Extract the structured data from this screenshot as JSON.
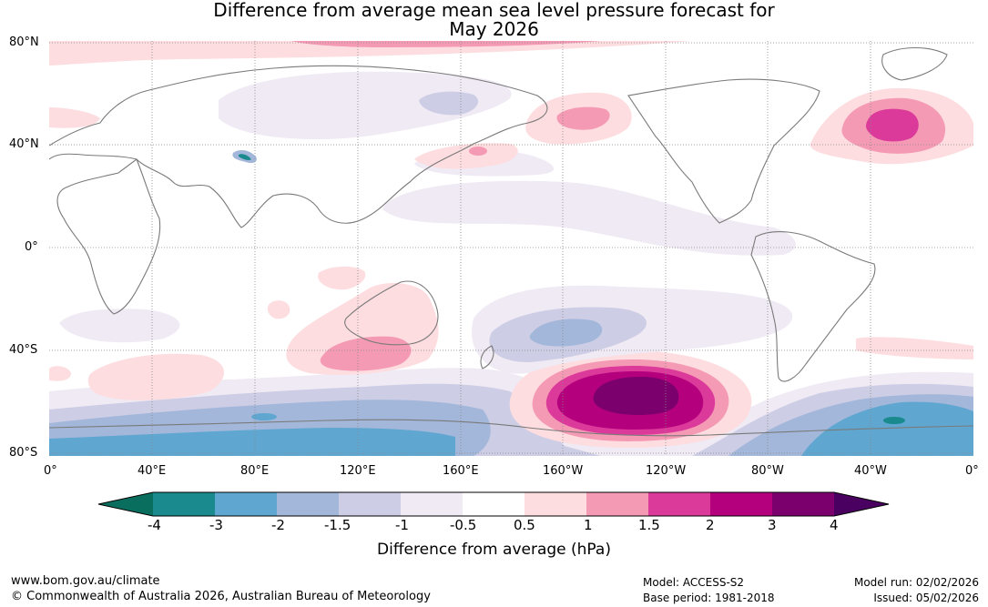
{
  "title": {
    "line1": "Difference from average mean sea level pressure forecast for",
    "line2": "May 2026"
  },
  "lat_labels": [
    "80°N",
    "40°N",
    "0°",
    "40°S",
    "80°S"
  ],
  "lon_labels": [
    "0°",
    "40°E",
    "80°E",
    "120°E",
    "160°E",
    "160°W",
    "120°W",
    "80°W",
    "40°W",
    "0°"
  ],
  "colorbar": {
    "ticks": [
      "-4",
      "-3",
      "-2",
      "-1.5",
      "-1",
      "-0.5",
      "0.5",
      "1",
      "1.5",
      "2",
      "3",
      "4"
    ],
    "colors": [
      "#1a8a8e",
      "#5fa7d0",
      "#a3b7da",
      "#cdcde5",
      "#f0eaf4",
      "#ffffff",
      "#fddde0",
      "#f59ab4",
      "#dc3a9b",
      "#b5007e",
      "#7b006e"
    ],
    "under_color": "#0a6e5e",
    "over_color": "#4a0060",
    "label": "Difference from average (hPa)"
  },
  "footer": {
    "url": "www.bom.gov.au/climate",
    "copyright": "© Commonwealth of Australia 2026, Australian Bureau of Meteorology",
    "model": "Model: ACCESS-S2",
    "base_period": "Base period: 1981-2018",
    "model_run": "Model run: 02/02/2026",
    "issued": "Issued: 05/02/2026"
  }
}
